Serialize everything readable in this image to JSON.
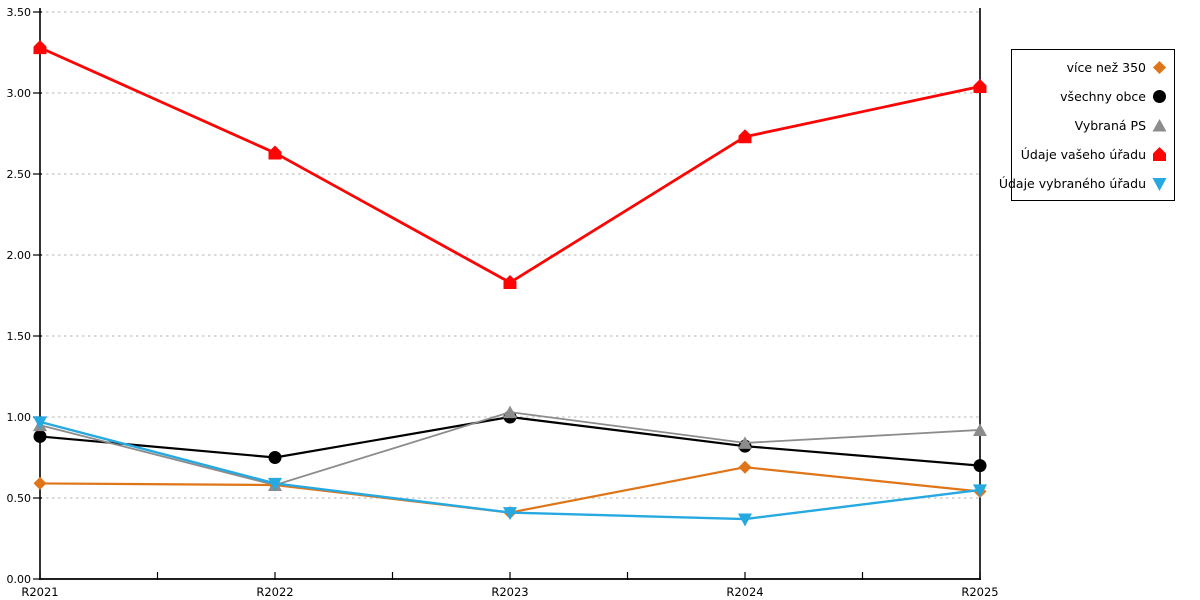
{
  "chart_data": {
    "type": "line",
    "title": "",
    "categories": [
      "R2021",
      "R2022",
      "R2023",
      "R2024",
      "R2025"
    ],
    "series": [
      {
        "name": "více než 350",
        "color": "#DF7518",
        "marker": "diamond",
        "values": [
          0.59,
          0.58,
          0.41,
          0.69,
          0.54
        ]
      },
      {
        "name": "všechny obce",
        "color": "#000000",
        "marker": "circle",
        "values": [
          0.88,
          0.75,
          1.0,
          0.82,
          0.7
        ]
      },
      {
        "name": "Vybraná PS",
        "color": "#8C8C8C",
        "marker": "triangle-up",
        "values": [
          0.95,
          0.58,
          1.03,
          0.84,
          0.92
        ]
      },
      {
        "name": "Údaje vašeho úřadu",
        "color": "#FB0604",
        "marker": "pentagon",
        "values": [
          3.28,
          2.63,
          1.83,
          2.73,
          3.04
        ]
      },
      {
        "name": "Údaje vybraného úřadu",
        "color": "#26A9E0",
        "marker": "triangle-down",
        "values": [
          0.97,
          0.59,
          0.41,
          0.37,
          0.55
        ]
      }
    ],
    "y_axis": {
      "min": 0,
      "max": 3.5,
      "step": 0.5,
      "tick_labels": [
        "0.00",
        "0.50",
        "1.00",
        "1.50",
        "2.00",
        "2.50",
        "3.00",
        "3.50"
      ]
    },
    "x_axis": {
      "tick_labels": [
        "R2021",
        "R2022",
        "R2023",
        "R2024",
        "R2025"
      ]
    },
    "grid": "dashed-horizontal",
    "legend_position": "top-right",
    "colors": {
      "grid": "#C4C4C4",
      "axis": "#000000",
      "background": "#FFFFFF"
    }
  }
}
